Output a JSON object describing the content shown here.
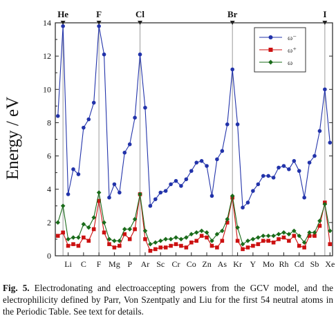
{
  "chart_data": {
    "type": "line",
    "ylabel": "Energy / eV",
    "xlabel": "",
    "ylim": [
      0,
      14
    ],
    "xlim": [
      0.5,
      54.5
    ],
    "yticks": [
      0,
      2,
      4,
      6,
      8,
      10,
      12,
      14
    ],
    "x_tick_labels": [
      {
        "z": 3,
        "label": "Li"
      },
      {
        "z": 6,
        "label": "C"
      },
      {
        "z": 9,
        "label": "F"
      },
      {
        "z": 12,
        "label": "Mg"
      },
      {
        "z": 15,
        "label": "P"
      },
      {
        "z": 18,
        "label": "Ar"
      },
      {
        "z": 21,
        "label": "Sc"
      },
      {
        "z": 24,
        "label": "Cr"
      },
      {
        "z": 27,
        "label": "Co"
      },
      {
        "z": 30,
        "label": "Zn"
      },
      {
        "z": 33,
        "label": "As"
      },
      {
        "z": 36,
        "label": "Kr"
      },
      {
        "z": 39,
        "label": "Y"
      },
      {
        "z": 42,
        "label": "Mo"
      },
      {
        "z": 45,
        "label": "Rh"
      },
      {
        "z": 48,
        "label": "Cd"
      },
      {
        "z": 51,
        "label": "Sb"
      },
      {
        "z": 54,
        "label": "Xe"
      }
    ],
    "top_labels": [
      {
        "z": 2,
        "label": "He"
      },
      {
        "z": 9,
        "label": "F"
      },
      {
        "z": 17,
        "label": "Cl"
      },
      {
        "z": 35,
        "label": "Br"
      },
      {
        "z": 53,
        "label": "I"
      }
    ],
    "x": [
      1,
      2,
      3,
      4,
      5,
      6,
      7,
      8,
      9,
      10,
      11,
      12,
      13,
      14,
      15,
      16,
      17,
      18,
      19,
      20,
      21,
      22,
      23,
      24,
      25,
      26,
      27,
      28,
      29,
      30,
      31,
      32,
      33,
      34,
      35,
      36,
      37,
      38,
      39,
      40,
      41,
      42,
      43,
      44,
      45,
      46,
      47,
      48,
      49,
      50,
      51,
      52,
      53,
      54
    ],
    "series": [
      {
        "name": "ω⁻",
        "color": "#2233aa",
        "marker": "circle",
        "values": [
          8.4,
          13.8,
          3.7,
          5.2,
          4.9,
          7.7,
          8.2,
          9.2,
          13.8,
          12.1,
          3.5,
          4.3,
          3.8,
          6.2,
          6.7,
          8.3,
          12.1,
          8.9,
          3.0,
          3.4,
          3.8,
          3.9,
          4.3,
          4.5,
          4.2,
          4.6,
          5.1,
          5.6,
          5.7,
          5.4,
          3.6,
          5.8,
          6.3,
          7.9,
          11.2,
          7.9,
          2.9,
          3.2,
          3.9,
          4.3,
          4.8,
          4.8,
          4.7,
          5.3,
          5.4,
          5.2,
          5.7,
          5.1,
          3.5,
          5.6,
          6.0,
          7.5,
          10.0,
          6.8
        ]
      },
      {
        "name": "ω⁺",
        "color": "#cc1111",
        "marker": "square",
        "values": [
          1.2,
          1.4,
          0.6,
          0.7,
          0.6,
          1.1,
          0.9,
          1.6,
          3.3,
          1.4,
          0.7,
          0.5,
          0.6,
          1.3,
          1.0,
          1.6,
          3.7,
          1.0,
          0.3,
          0.4,
          0.5,
          0.5,
          0.6,
          0.7,
          0.6,
          0.5,
          0.8,
          0.9,
          1.2,
          1.1,
          0.6,
          0.5,
          0.9,
          2.0,
          3.5,
          0.9,
          0.4,
          0.5,
          0.6,
          0.7,
          0.9,
          0.9,
          0.8,
          1.0,
          1.1,
          0.9,
          1.2,
          0.6,
          0.5,
          1.2,
          1.2,
          1.8,
          3.2,
          0.7
        ]
      },
      {
        "name": "ω",
        "color": "#1a6b1a",
        "marker": "diamond",
        "values": [
          2.0,
          3.0,
          1.0,
          1.1,
          1.1,
          1.9,
          1.7,
          2.3,
          3.8,
          2.0,
          1.0,
          0.9,
          0.9,
          1.6,
          1.6,
          2.2,
          3.7,
          1.5,
          0.7,
          0.8,
          0.9,
          1.0,
          1.0,
          1.1,
          1.0,
          1.1,
          1.3,
          1.4,
          1.5,
          1.4,
          0.9,
          1.3,
          1.5,
          2.2,
          3.6,
          1.7,
          0.7,
          0.9,
          1.0,
          1.1,
          1.2,
          1.2,
          1.2,
          1.3,
          1.4,
          1.3,
          1.5,
          1.2,
          0.8,
          1.4,
          1.4,
          2.1,
          3.1,
          1.5
        ]
      }
    ],
    "legend": {
      "position": "top-right"
    },
    "grid": false
  },
  "caption": {
    "lead": "Fig. 5.",
    "text": " Electrodonating and electroaccepting powers from the GCV model, and the electrophilicity defined by Parr, Von Szentpatly and Liu for the first 54 neutral atoms in the Periodic Table. See text for details."
  }
}
